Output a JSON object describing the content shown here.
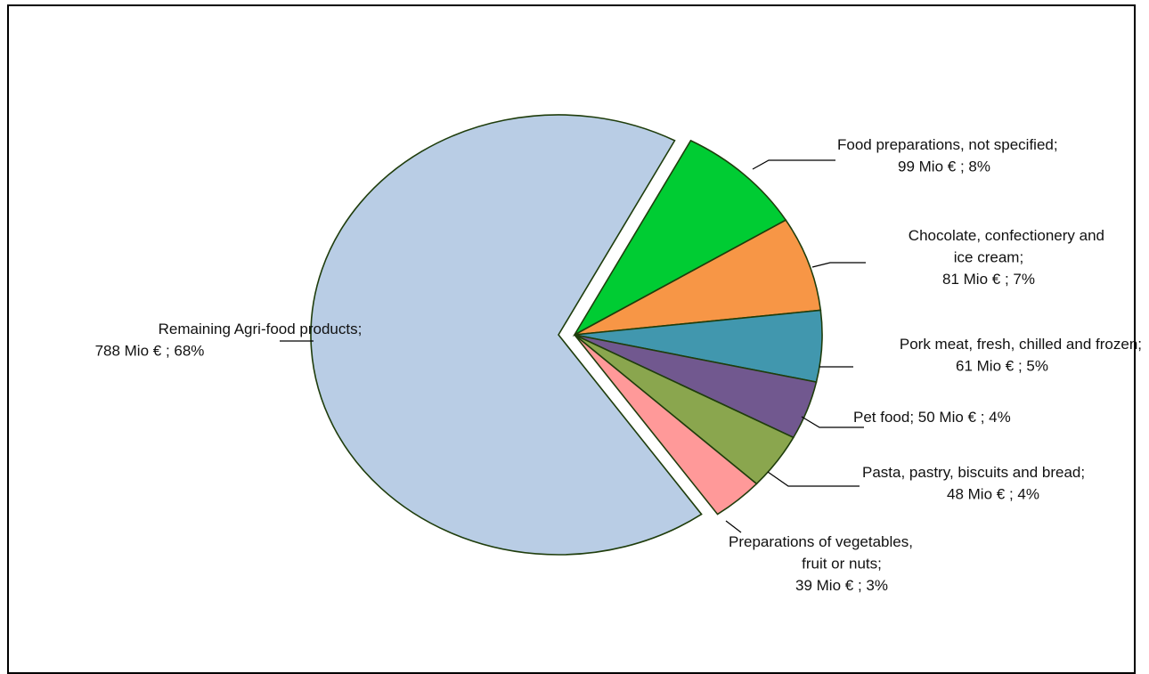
{
  "chart_data": {
    "type": "pie",
    "unit": "Mio €",
    "slices": [
      {
        "name": "Food preparations, not specified",
        "value": 99,
        "percent": 8,
        "color": "#00cc33",
        "label_lines": [
          "Food preparations, not specified;",
          "99 Mio € ; 8%"
        ]
      },
      {
        "name": "Chocolate, confectionery and ice cream",
        "value": 81,
        "percent": 7,
        "color": "#f79646",
        "label_lines": [
          "Chocolate, confectionery and",
          "ice cream;",
          "81 Mio € ; 7%"
        ]
      },
      {
        "name": "Pork meat, fresh, chilled and frozen",
        "value": 61,
        "percent": 5,
        "color": "#4197ae",
        "label_lines": [
          "Pork meat, fresh, chilled and frozen;",
          "61 Mio € ; 5%"
        ]
      },
      {
        "name": "Pet food",
        "value": 50,
        "percent": 4,
        "color": "#71588f",
        "label_lines": [
          "Pet food; 50 Mio € ; 4%"
        ]
      },
      {
        "name": "Pasta, pastry, biscuits and bread",
        "value": 48,
        "percent": 4,
        "color": "#8aa64e",
        "label_lines": [
          "Pasta, pastry, biscuits and bread;",
          "48 Mio € ; 4%"
        ]
      },
      {
        "name": "Preparations of vegetables, fruit or nuts",
        "value": 39,
        "percent": 3,
        "color": "#ff9999",
        "label_lines": [
          "Preparations of vegetables,",
          "fruit or nuts;",
          "39 Mio € ; 3%"
        ]
      },
      {
        "name": "Remaining Agri-food products",
        "value": 788,
        "percent": 68,
        "color": "#b9cde5",
        "label_lines": [
          "Remaining Agri-food products;",
          "788 Mio € ; 68%"
        ]
      }
    ],
    "slice_outline_color": "#1f3d0c",
    "leader_line_color": "#000000"
  }
}
